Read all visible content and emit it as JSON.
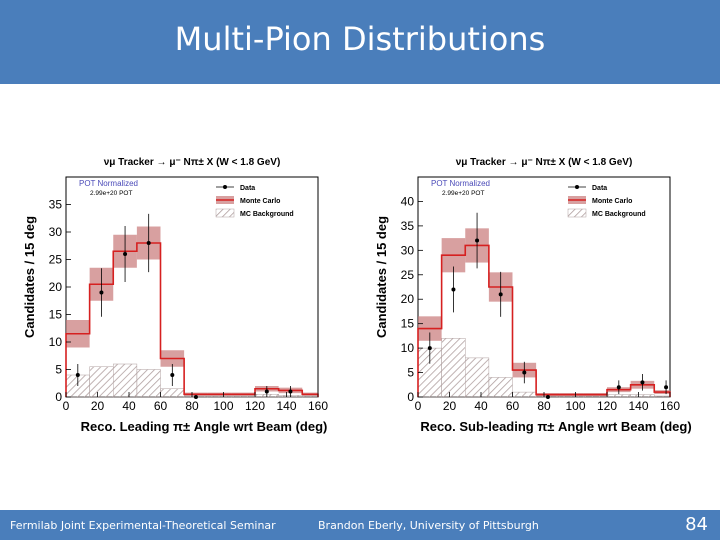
{
  "slide": {
    "title": "Multi-Pion Distributions"
  },
  "footer": {
    "left": "Fermilab Joint Experimental-Theoretical Seminar",
    "center": "Brandon Eberly, University of Pittsburgh",
    "page": "84"
  },
  "colors": {
    "header_bg": "#4a7ebb",
    "mc_line": "#d62020",
    "mc_band": "#c87878",
    "data": "#000000",
    "hatch": "#b0a0a0"
  },
  "chart_data": [
    {
      "type": "bar",
      "title": "νμ Tracker → μ⁻ Nπ± X  (W < 1.8 GeV)",
      "xlabel": "Reco. Leading π± Angle wrt Beam (deg)",
      "ylabel": "Candidates / 15 deg",
      "xlim": [
        0,
        160
      ],
      "ylim": [
        0,
        40
      ],
      "xticks": [
        0,
        20,
        40,
        60,
        80,
        100,
        120,
        140,
        160
      ],
      "yticks": [
        0,
        5,
        10,
        15,
        20,
        25,
        30,
        35
      ],
      "annotation": "POT Normalized",
      "pot": "2.99e+20 POT",
      "legend": {
        "entries": [
          "Data",
          "Monte Carlo",
          "MC Background"
        ],
        "position": "top-right"
      },
      "bin_edges": [
        0,
        15,
        30,
        45,
        60,
        75,
        90,
        105,
        120,
        135,
        150,
        165
      ],
      "mc": [
        11.5,
        20.5,
        26.5,
        28.0,
        7.0,
        0.5,
        0.5,
        0.5,
        1.5,
        1.2,
        0.5
      ],
      "mc_err": [
        2.5,
        3.0,
        3.0,
        3.0,
        1.5,
        0.3,
        0.3,
        0.3,
        0.5,
        0.5,
        0.3
      ],
      "bkg": [
        4.0,
        5.5,
        6.0,
        5.0,
        1.5,
        0.2,
        0.2,
        0.2,
        0.5,
        0.3,
        0.2
      ],
      "data_x": [
        7.5,
        22.5,
        37.5,
        52.5,
        67.5,
        82.5,
        127.5,
        142.5
      ],
      "data_y": [
        4,
        19,
        26,
        28,
        4,
        0,
        1,
        1
      ],
      "data_err": [
        2,
        4.4,
        5.1,
        5.3,
        2,
        0,
        1,
        1
      ]
    },
    {
      "type": "bar",
      "title": "νμ Tracker → μ⁻ Nπ± X  (W < 1.8 GeV)",
      "xlabel": "Reco. Sub-leading π± Angle wrt Beam (deg)",
      "ylabel": "Candidates / 15 deg",
      "xlim": [
        0,
        160
      ],
      "ylim": [
        0,
        45
      ],
      "xticks": [
        0,
        20,
        40,
        60,
        80,
        100,
        120,
        140,
        160
      ],
      "yticks": [
        0,
        5,
        10,
        15,
        20,
        25,
        30,
        35,
        40
      ],
      "annotation": "POT Normalized",
      "pot": "2.99e+20 POT",
      "legend": {
        "entries": [
          "Data",
          "Monte Carlo",
          "MC Background"
        ],
        "position": "top-right"
      },
      "bin_edges": [
        0,
        15,
        30,
        45,
        60,
        75,
        90,
        105,
        120,
        135,
        150,
        165
      ],
      "mc": [
        14.0,
        29.0,
        31.0,
        22.5,
        5.5,
        0.5,
        0.5,
        0.5,
        1.5,
        2.5,
        1.0
      ],
      "mc_err": [
        2.5,
        3.5,
        3.5,
        3.0,
        1.5,
        0.3,
        0.3,
        0.3,
        0.5,
        0.8,
        0.4
      ],
      "bkg": [
        10.0,
        12.0,
        8.0,
        4.0,
        1.0,
        0.2,
        0.2,
        0.2,
        0.5,
        0.5,
        0.2
      ],
      "data_x": [
        7.5,
        22.5,
        37.5,
        52.5,
        67.5,
        82.5,
        127.5,
        142.5,
        157.5
      ],
      "data_y": [
        10,
        22,
        32,
        21,
        5,
        0,
        2,
        3,
        2
      ],
      "data_err": [
        3.2,
        4.7,
        5.7,
        4.6,
        2.2,
        0,
        1.4,
        1.7,
        1.4
      ]
    }
  ]
}
